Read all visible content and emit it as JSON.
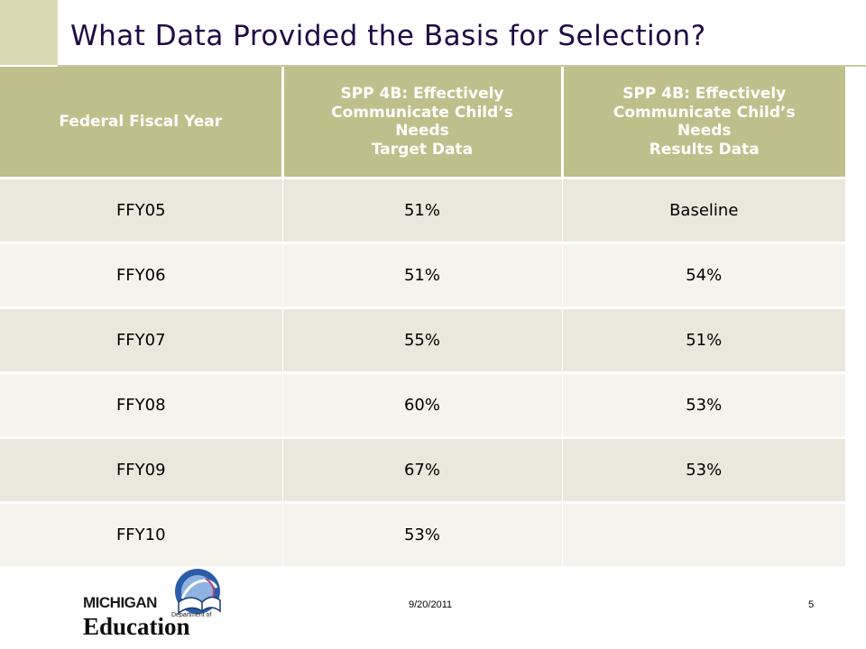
{
  "slide": {
    "title": "What Data Provided the Basis for Selection?",
    "date": "9/20/2011",
    "page_number": "5"
  },
  "table": {
    "headers": [
      {
        "lines": [
          "Federal Fiscal Year"
        ]
      },
      {
        "lines": [
          "SPP 4B: Effectively",
          "Communicate Child’s",
          "Needs",
          "Target Data"
        ]
      },
      {
        "lines": [
          "SPP 4B: Effectively",
          "Communicate Child’s",
          "Needs",
          "Results Data"
        ]
      }
    ],
    "rows": [
      [
        "FFY05",
        "51%",
        "Baseline"
      ],
      [
        "FFY06",
        "51%",
        "54%"
      ],
      [
        "FFY07",
        "55%",
        "51%"
      ],
      [
        "FFY08",
        "60%",
        "53%"
      ],
      [
        "FFY09",
        "67%",
        "53%"
      ],
      [
        "FFY10",
        "53%",
        ""
      ]
    ]
  },
  "logo": {
    "state": "MICHIGAN",
    "department": "Department of",
    "name": "Education"
  },
  "colors": {
    "title": "#1f0a45",
    "header_bg": "#bfbf8c",
    "row_odd": "#e8e8dc",
    "row_even": "#f4f4ec",
    "accent": "#d9d9b4"
  }
}
